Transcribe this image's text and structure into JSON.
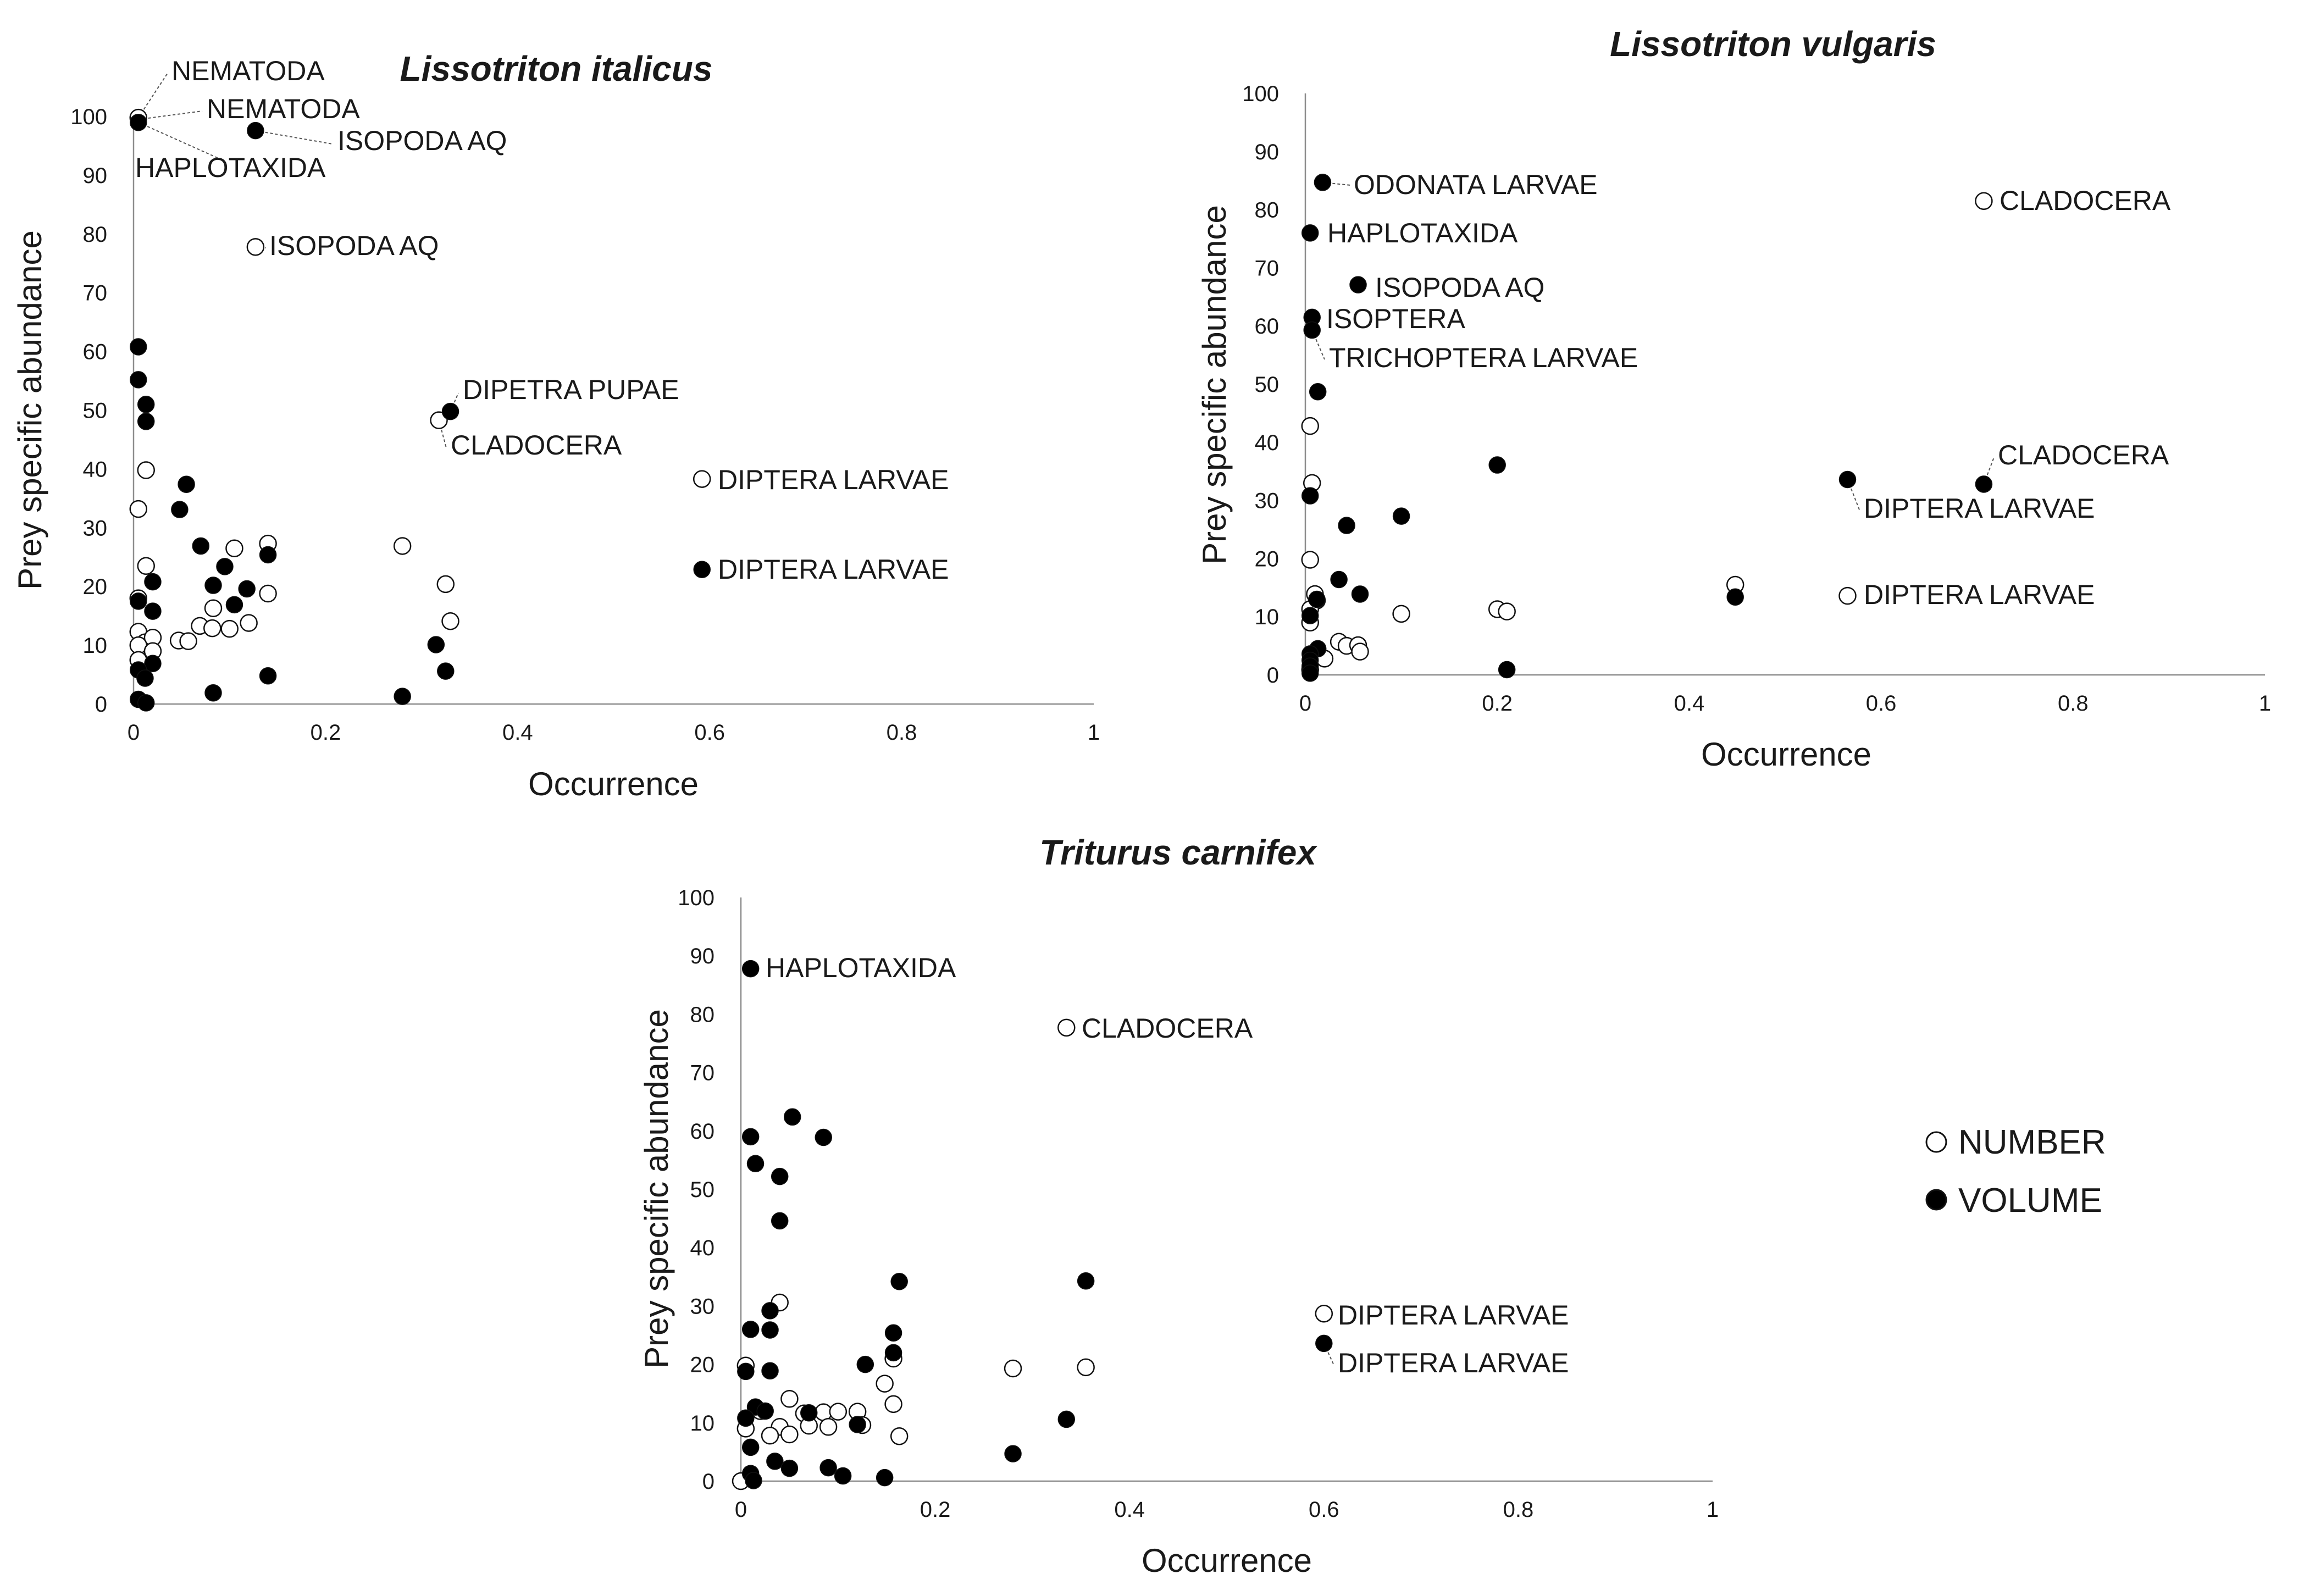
{
  "chart_data": [
    {
      "type": "scatter",
      "title": "Lissotriton italicus",
      "xlabel": "Occurrence",
      "ylabel": "Prey specific abundance",
      "xlim": [
        0,
        1
      ],
      "ylim": [
        0,
        100
      ],
      "xticks": [
        "0",
        "0.2",
        "0.4",
        "0.6",
        "0.8",
        "1"
      ],
      "yticks": [
        "0",
        "10",
        "20",
        "30",
        "40",
        "50",
        "60",
        "70",
        "80",
        "90",
        "100"
      ],
      "series": [
        {
          "name": "NUMBER",
          "points": [
            {
              "x": 0.005,
              "y": 99.8
            },
            {
              "x": 0.127,
              "y": 77.8
            },
            {
              "x": 0.318,
              "y": 48.3
            },
            {
              "x": 0.592,
              "y": 38.3
            },
            {
              "x": 0.013,
              "y": 39.8
            },
            {
              "x": 0.005,
              "y": 33.2
            },
            {
              "x": 0.013,
              "y": 23.5
            },
            {
              "x": 0.005,
              "y": 18.0
            },
            {
              "x": 0.005,
              "y": 12.3
            },
            {
              "x": 0.012,
              "y": 10.5
            },
            {
              "x": 0.02,
              "y": 11.3
            },
            {
              "x": 0.005,
              "y": 10.0
            },
            {
              "x": 0.005,
              "y": 7.5
            },
            {
              "x": 0.02,
              "y": 9.0
            },
            {
              "x": 0.047,
              "y": 10.8
            },
            {
              "x": 0.057,
              "y": 10.7
            },
            {
              "x": 0.069,
              "y": 13.3
            },
            {
              "x": 0.082,
              "y": 12.9
            },
            {
              "x": 0.083,
              "y": 16.3
            },
            {
              "x": 0.1,
              "y": 12.8
            },
            {
              "x": 0.105,
              "y": 26.5
            },
            {
              "x": 0.12,
              "y": 13.8
            },
            {
              "x": 0.14,
              "y": 27.3
            },
            {
              "x": 0.14,
              "y": 18.8
            },
            {
              "x": 0.28,
              "y": 26.9
            },
            {
              "x": 0.325,
              "y": 20.4
            },
            {
              "x": 0.33,
              "y": 14.1
            }
          ]
        },
        {
          "name": "VOLUME",
          "points": [
            {
              "x": 0.005,
              "y": 99.0
            },
            {
              "x": 0.127,
              "y": 97.6
            },
            {
              "x": 0.33,
              "y": 49.8
            },
            {
              "x": 0.592,
              "y": 22.9
            },
            {
              "x": 0.005,
              "y": 60.8
            },
            {
              "x": 0.005,
              "y": 55.2
            },
            {
              "x": 0.013,
              "y": 51.0
            },
            {
              "x": 0.013,
              "y": 48.1
            },
            {
              "x": 0.055,
              "y": 37.4
            },
            {
              "x": 0.048,
              "y": 33.1
            },
            {
              "x": 0.07,
              "y": 26.9
            },
            {
              "x": 0.14,
              "y": 25.4
            },
            {
              "x": 0.095,
              "y": 23.4
            },
            {
              "x": 0.02,
              "y": 20.8
            },
            {
              "x": 0.083,
              "y": 20.2
            },
            {
              "x": 0.118,
              "y": 19.6
            },
            {
              "x": 0.005,
              "y": 17.5
            },
            {
              "x": 0.105,
              "y": 16.9
            },
            {
              "x": 0.02,
              "y": 15.8
            },
            {
              "x": 0.315,
              "y": 10.1
            },
            {
              "x": 0.02,
              "y": 6.9
            },
            {
              "x": 0.005,
              "y": 5.8
            },
            {
              "x": 0.012,
              "y": 4.4
            },
            {
              "x": 0.14,
              "y": 4.8
            },
            {
              "x": 0.325,
              "y": 5.6
            },
            {
              "x": 0.083,
              "y": 1.9
            },
            {
              "x": 0.28,
              "y": 1.3
            },
            {
              "x": 0.005,
              "y": 0.8
            },
            {
              "x": 0.013,
              "y": 0.2
            }
          ]
        }
      ],
      "annotations": [
        {
          "text": "NEMATODA",
          "x": 0.005,
          "y": 99.8,
          "series": "NUMBER"
        },
        {
          "text": "NEMATODA",
          "x": 0.005,
          "y": 99.5,
          "series": "VOLUME"
        },
        {
          "text": "HAPLOTAXIDA",
          "x": 0.005,
          "y": 99.0,
          "series": "VOLUME"
        },
        {
          "text": "ISOPODA AQ",
          "x": 0.127,
          "y": 97.6,
          "series": "VOLUME"
        },
        {
          "text": "ISOPODA AQ",
          "x": 0.127,
          "y": 77.8,
          "series": "NUMBER"
        },
        {
          "text": "DIPETRA PUPAE",
          "x": 0.33,
          "y": 49.8,
          "series": "VOLUME"
        },
        {
          "text": "CLADOCERA",
          "x": 0.318,
          "y": 48.3,
          "series": "NUMBER"
        },
        {
          "text": "DIPTERA LARVAE",
          "x": 0.592,
          "y": 38.3,
          "series": "NUMBER"
        },
        {
          "text": "DIPTERA LARVAE",
          "x": 0.592,
          "y": 22.9,
          "series": "VOLUME"
        }
      ]
    },
    {
      "type": "scatter",
      "title": "Lissotriton vulgaris",
      "xlabel": "Occurrence",
      "ylabel": "Prey specific abundance",
      "xlim": [
        0,
        1
      ],
      "ylim": [
        0,
        100
      ],
      "xticks": [
        "0",
        "0.2",
        "0.4",
        "0.6",
        "0.8",
        "1"
      ],
      "yticks": [
        "0",
        "10",
        "20",
        "30",
        "40",
        "50",
        "60",
        "70",
        "80",
        "90",
        "100"
      ],
      "series": [
        {
          "name": "NUMBER",
          "points": [
            {
              "x": 0.707,
              "y": 81.5
            },
            {
              "x": 0.565,
              "y": 13.6
            },
            {
              "x": 0.448,
              "y": 15.5
            },
            {
              "x": 0.005,
              "y": 42.8
            },
            {
              "x": 0.007,
              "y": 33.0
            },
            {
              "x": 0.005,
              "y": 19.8
            },
            {
              "x": 0.01,
              "y": 13.9
            },
            {
              "x": 0.012,
              "y": 12.8
            },
            {
              "x": 0.005,
              "y": 11.3
            },
            {
              "x": 0.005,
              "y": 9.0
            },
            {
              "x": 0.02,
              "y": 2.8
            },
            {
              "x": 0.035,
              "y": 5.7
            },
            {
              "x": 0.043,
              "y": 5.0
            },
            {
              "x": 0.055,
              "y": 5.1
            },
            {
              "x": 0.057,
              "y": 4.0
            },
            {
              "x": 0.1,
              "y": 10.5
            },
            {
              "x": 0.2,
              "y": 11.3
            },
            {
              "x": 0.21,
              "y": 10.9
            },
            {
              "x": 0.005,
              "y": 0.9
            }
          ]
        },
        {
          "name": "VOLUME",
          "points": [
            {
              "x": 0.018,
              "y": 84.7
            },
            {
              "x": 0.005,
              "y": 76.0
            },
            {
              "x": 0.055,
              "y": 67.1
            },
            {
              "x": 0.007,
              "y": 61.5
            },
            {
              "x": 0.007,
              "y": 59.3
            },
            {
              "x": 0.013,
              "y": 48.7
            },
            {
              "x": 0.2,
              "y": 36.1
            },
            {
              "x": 0.565,
              "y": 33.6
            },
            {
              "x": 0.707,
              "y": 32.8
            },
            {
              "x": 0.005,
              "y": 30.8
            },
            {
              "x": 0.1,
              "y": 27.3
            },
            {
              "x": 0.043,
              "y": 25.7
            },
            {
              "x": 0.035,
              "y": 16.4
            },
            {
              "x": 0.057,
              "y": 13.9
            },
            {
              "x": 0.448,
              "y": 13.4
            },
            {
              "x": 0.012,
              "y": 13.0
            },
            {
              "x": 0.005,
              "y": 10.2
            },
            {
              "x": 0.013,
              "y": 4.5
            },
            {
              "x": 0.005,
              "y": 3.6
            },
            {
              "x": 0.005,
              "y": 2.5
            },
            {
              "x": 0.005,
              "y": 1.5
            },
            {
              "x": 0.21,
              "y": 0.9
            },
            {
              "x": 0.005,
              "y": 0.3
            }
          ]
        }
      ],
      "annotations": [
        {
          "text": "ODONATA LARVAE",
          "x": 0.018,
          "y": 84.7,
          "series": "VOLUME"
        },
        {
          "text": "CLADOCERA",
          "x": 0.707,
          "y": 81.5,
          "series": "NUMBER"
        },
        {
          "text": "HAPLOTAXIDA",
          "x": 0.005,
          "y": 76.0,
          "series": "VOLUME"
        },
        {
          "text": "ISOPODA AQ",
          "x": 0.055,
          "y": 67.1,
          "series": "VOLUME"
        },
        {
          "text": "ISOPTERA",
          "x": 0.007,
          "y": 61.5,
          "series": "VOLUME"
        },
        {
          "text": "TRICHOPTERA LARVAE",
          "x": 0.007,
          "y": 59.3,
          "series": "VOLUME"
        },
        {
          "text": "CLADOCERA",
          "x": 0.707,
          "y": 32.8,
          "series": "VOLUME"
        },
        {
          "text": "DIPTERA LARVAE",
          "x": 0.565,
          "y": 33.6,
          "series": "VOLUME"
        },
        {
          "text": "DIPTERA LARVAE",
          "x": 0.565,
          "y": 13.6,
          "series": "NUMBER"
        }
      ]
    },
    {
      "type": "scatter",
      "title": "Triturus carnifex",
      "xlabel": "Occurrence",
      "ylabel": "Prey specific abundance",
      "xlim": [
        0,
        1
      ],
      "ylim": [
        0,
        100
      ],
      "xticks": [
        "0",
        "0.2",
        "0.4",
        "0.6",
        "0.8",
        "1"
      ],
      "yticks": [
        "0",
        "10",
        "20",
        "30",
        "40",
        "50",
        "60",
        "70",
        "80",
        "90",
        "100"
      ],
      "series": [
        {
          "name": "NUMBER",
          "points": [
            {
              "x": 0.335,
              "y": 77.7
            },
            {
              "x": 0.6,
              "y": 28.7
            },
            {
              "x": 0.28,
              "y": 19.3
            },
            {
              "x": 0.355,
              "y": 19.5
            },
            {
              "x": 0.04,
              "y": 30.6
            },
            {
              "x": 0.005,
              "y": 19.8
            },
            {
              "x": 0.157,
              "y": 21.0
            },
            {
              "x": 0.148,
              "y": 16.7
            },
            {
              "x": 0.05,
              "y": 14.1
            },
            {
              "x": 0.157,
              "y": 13.2
            },
            {
              "x": 0.02,
              "y": 12.0
            },
            {
              "x": 0.065,
              "y": 11.6
            },
            {
              "x": 0.085,
              "y": 11.8
            },
            {
              "x": 0.1,
              "y": 11.9
            },
            {
              "x": 0.12,
              "y": 11.9
            },
            {
              "x": 0.04,
              "y": 9.3
            },
            {
              "x": 0.07,
              "y": 9.5
            },
            {
              "x": 0.09,
              "y": 9.3
            },
            {
              "x": 0.125,
              "y": 9.6
            },
            {
              "x": 0.03,
              "y": 7.8
            },
            {
              "x": 0.05,
              "y": 8.0
            },
            {
              "x": 0.163,
              "y": 7.7
            },
            {
              "x": 0.005,
              "y": 9.0
            },
            {
              "x": 0.0,
              "y": 0.0
            }
          ]
        },
        {
          "name": "VOLUME",
          "points": [
            {
              "x": 0.01,
              "y": 87.8
            },
            {
              "x": 0.053,
              "y": 62.4
            },
            {
              "x": 0.01,
              "y": 59.0
            },
            {
              "x": 0.085,
              "y": 58.9
            },
            {
              "x": 0.015,
              "y": 54.4
            },
            {
              "x": 0.04,
              "y": 52.2
            },
            {
              "x": 0.04,
              "y": 44.6
            },
            {
              "x": 0.355,
              "y": 34.3
            },
            {
              "x": 0.163,
              "y": 34.2
            },
            {
              "x": 0.03,
              "y": 29.2
            },
            {
              "x": 0.01,
              "y": 26.0
            },
            {
              "x": 0.03,
              "y": 25.9
            },
            {
              "x": 0.157,
              "y": 25.4
            },
            {
              "x": 0.6,
              "y": 23.6
            },
            {
              "x": 0.157,
              "y": 22.0
            },
            {
              "x": 0.128,
              "y": 20.0
            },
            {
              "x": 0.005,
              "y": 18.8
            },
            {
              "x": 0.03,
              "y": 18.9
            },
            {
              "x": 0.015,
              "y": 12.7
            },
            {
              "x": 0.025,
              "y": 12.0
            },
            {
              "x": 0.07,
              "y": 11.7
            },
            {
              "x": 0.005,
              "y": 10.8
            },
            {
              "x": 0.335,
              "y": 10.6
            },
            {
              "x": 0.12,
              "y": 9.7
            },
            {
              "x": 0.01,
              "y": 5.8
            },
            {
              "x": 0.28,
              "y": 4.7
            },
            {
              "x": 0.035,
              "y": 3.4
            },
            {
              "x": 0.05,
              "y": 2.2
            },
            {
              "x": 0.09,
              "y": 2.3
            },
            {
              "x": 0.01,
              "y": 1.3
            },
            {
              "x": 0.105,
              "y": 0.9
            },
            {
              "x": 0.148,
              "y": 0.6
            },
            {
              "x": 0.013,
              "y": 0.1
            }
          ]
        }
      ],
      "annotations": [
        {
          "text": "HAPLOTAXIDA",
          "x": 0.01,
          "y": 87.8,
          "series": "VOLUME"
        },
        {
          "text": "CLADOCERA",
          "x": 0.335,
          "y": 77.7,
          "series": "NUMBER"
        },
        {
          "text": "DIPTERA LARVAE",
          "x": 0.6,
          "y": 28.7,
          "series": "NUMBER"
        },
        {
          "text": "DIPTERA LARVAE",
          "x": 0.6,
          "y": 23.6,
          "series": "VOLUME"
        }
      ],
      "legend": {
        "position": "right",
        "items": [
          {
            "label": "NUMBER",
            "marker": "open-circle"
          },
          {
            "label": "VOLUME",
            "marker": "filled-circle"
          }
        ]
      }
    }
  ],
  "colors": {
    "axis": "#8c8c8c",
    "marker_stroke": "#111111",
    "number_fill": "#ffffff",
    "volume_fill": "#000000",
    "text": "#1a1a1a"
  }
}
